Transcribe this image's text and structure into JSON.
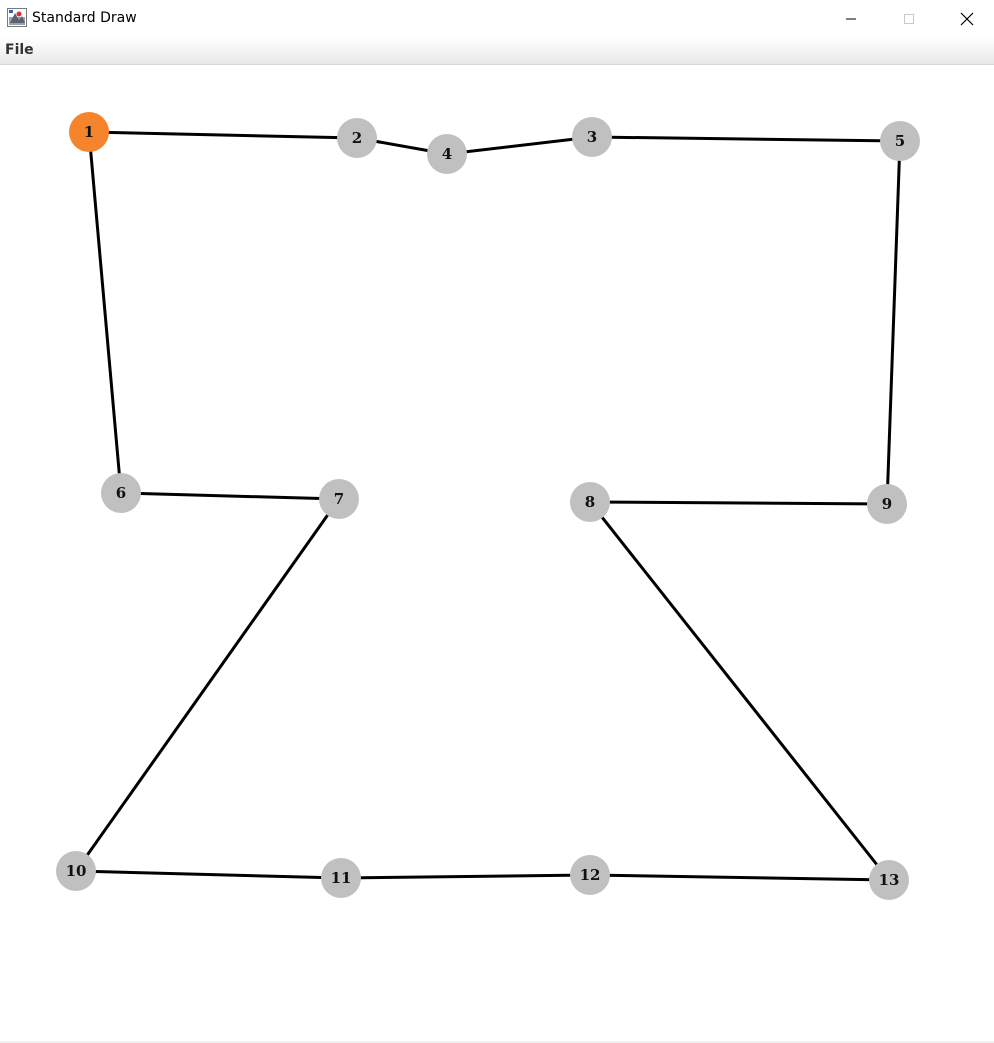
{
  "window": {
    "title": "Standard Draw"
  },
  "menu": {
    "items": [
      {
        "label": "File"
      }
    ]
  },
  "colors": {
    "node_default": "#c0c0c0",
    "node_highlight": "#f5842c",
    "edge": "#000000",
    "label": "#111111"
  },
  "graph": {
    "highlighted_node": "1",
    "nodes": [
      {
        "id": "1",
        "label": "1"
      },
      {
        "id": "2",
        "label": "2"
      },
      {
        "id": "3",
        "label": "3"
      },
      {
        "id": "4",
        "label": "4"
      },
      {
        "id": "5",
        "label": "5"
      },
      {
        "id": "6",
        "label": "6"
      },
      {
        "id": "7",
        "label": "7"
      },
      {
        "id": "8",
        "label": "8"
      },
      {
        "id": "9",
        "label": "9"
      },
      {
        "id": "10",
        "label": "10"
      },
      {
        "id": "11",
        "label": "11"
      },
      {
        "id": "12",
        "label": "12"
      },
      {
        "id": "13",
        "label": "13"
      }
    ],
    "edges": [
      {
        "from": "1",
        "to": "2"
      },
      {
        "from": "2",
        "to": "4"
      },
      {
        "from": "4",
        "to": "3"
      },
      {
        "from": "3",
        "to": "5"
      },
      {
        "from": "5",
        "to": "9"
      },
      {
        "from": "9",
        "to": "8"
      },
      {
        "from": "8",
        "to": "13"
      },
      {
        "from": "13",
        "to": "12"
      },
      {
        "from": "12",
        "to": "11"
      },
      {
        "from": "11",
        "to": "10"
      },
      {
        "from": "10",
        "to": "7"
      },
      {
        "from": "7",
        "to": "6"
      },
      {
        "from": "6",
        "to": "1"
      }
    ]
  }
}
